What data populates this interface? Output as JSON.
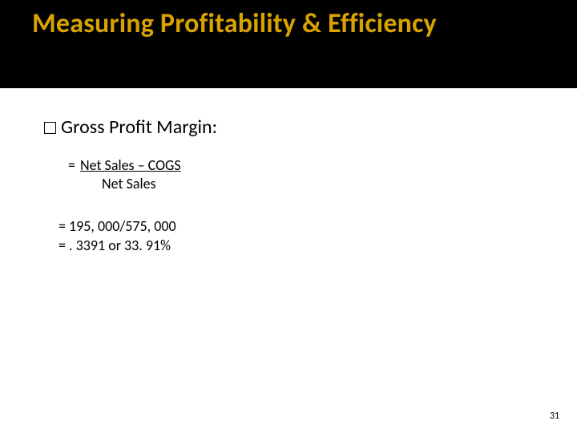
{
  "title": "Measuring Profitability & Efficiency",
  "bullet": {
    "text": "Gross Profit Margin:"
  },
  "formula": {
    "line1_prefix": "=",
    "numerator": "Net Sales – COGS",
    "denominator": "Net Sales"
  },
  "calc": {
    "line1": "=  195, 000/575, 000",
    "line2": "= . 3391 or 33. 91%"
  },
  "page_number": "31",
  "colors": {
    "title_band_bg": "#000000",
    "title_color": "#d8a300",
    "body_bg": "#ffffff",
    "text_color": "#000000"
  },
  "typography": {
    "title_fontsize_pt": 26,
    "bullet_fontsize_pt": 18,
    "body_fontsize_pt": 14,
    "pagenum_fontsize_pt": 9,
    "font_family": "Calibri"
  }
}
